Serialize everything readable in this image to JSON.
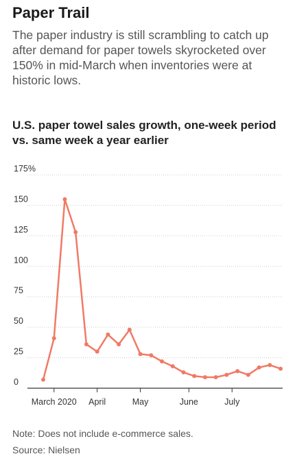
{
  "headline": "Paper Trail",
  "dek": "The paper industry is still scrambling to catch up after demand for paper towels skyrocketed over 150% in mid-March when inventories were at historic lows.",
  "footer": {
    "note": "Note: Does not include e-commerce sales.",
    "source": "Source: Nielsen"
  },
  "colors": {
    "line": "#f07a64",
    "grid": "#cccccc",
    "axis": "#333333"
  },
  "chart_data": {
    "type": "line",
    "title": "U.S. paper towel sales growth, one-week period vs. same week a year earlier",
    "xlabel": "",
    "ylabel": "",
    "ylim": [
      0,
      175
    ],
    "yticks": [
      0,
      25,
      50,
      75,
      100,
      125,
      150,
      175
    ],
    "ytick_labels": [
      "0",
      "25",
      "50",
      "75",
      "100",
      "125",
      "150",
      "175%"
    ],
    "xticks": [
      {
        "label": "March 2020",
        "week": 1
      },
      {
        "label": "April",
        "week": 5
      },
      {
        "label": "May",
        "week": 9
      },
      {
        "label": "June",
        "week": 13.5
      },
      {
        "label": "July",
        "week": 17.5
      }
    ],
    "grid": true,
    "series": [
      {
        "weeks": [
          0,
          1,
          2,
          3,
          4,
          5,
          6,
          7,
          8,
          9,
          10,
          11,
          12,
          13,
          14,
          15,
          16,
          17,
          18,
          19,
          20,
          21,
          22
        ],
        "values": [
          7,
          41,
          155,
          128,
          36,
          30,
          44,
          36,
          48,
          28,
          27,
          22,
          18,
          13,
          10,
          9,
          9,
          11,
          14,
          11,
          17,
          19,
          16
        ]
      }
    ]
  }
}
